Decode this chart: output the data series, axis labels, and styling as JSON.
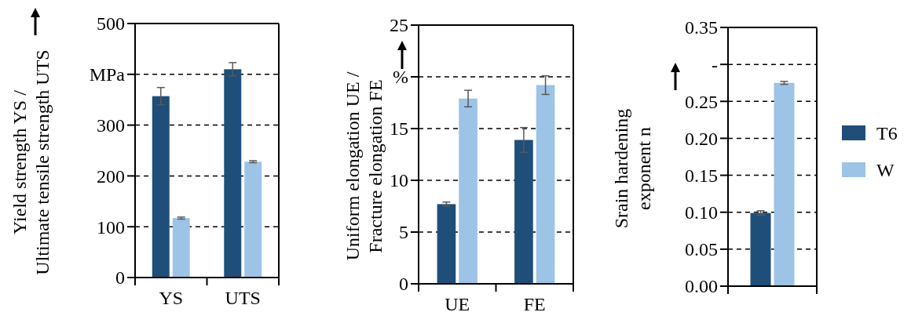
{
  "chart_data": [
    {
      "type": "bar",
      "ylabel": "Yield strength YS /\nUltimate tensile strength UTS",
      "categories": [
        "YS",
        "UTS"
      ],
      "series": [
        {
          "color": "#1f4e79",
          "values": [
            357,
            410
          ],
          "errors": [
            17,
            13
          ]
        },
        {
          "color": "#9dc3e6",
          "values": [
            117,
            228
          ],
          "errors": [
            2,
            2
          ]
        }
      ],
      "ylim": [
        0,
        500
      ],
      "yticks": [
        0,
        100,
        200,
        300,
        {
          "value": 400,
          "label": "MPa"
        },
        500
      ],
      "grid": "y",
      "legend": false
    },
    {
      "type": "bar",
      "ylabel": "Uniform elongation UE /\nFracture elongation FE",
      "categories": [
        "UE",
        "FE"
      ],
      "series": [
        {
          "color": "#1f4e79",
          "values": [
            7.7,
            13.9
          ],
          "errors": [
            0.2,
            1.2
          ]
        },
        {
          "color": "#9dc3e6",
          "values": [
            17.9,
            19.2
          ],
          "errors": [
            0.8,
            0.9
          ]
        }
      ],
      "ylim": [
        0,
        25
      ],
      "yticks": [
        0,
        5,
        10,
        15,
        {
          "value": 20,
          "label": "%"
        },
        25
      ],
      "grid": "y",
      "legend": false
    },
    {
      "type": "bar",
      "ylabel": "Srain hardening\nexponent n",
      "categories": [
        null
      ],
      "series": [
        {
          "name": "T6",
          "color": "#1f4e79",
          "values": [
            0.099
          ],
          "errors": [
            0.003
          ]
        },
        {
          "name": "W",
          "color": "#9dc3e6",
          "values": [
            0.275
          ],
          "errors": [
            0.002
          ]
        }
      ],
      "ylim": [
        0,
        0.35
      ],
      "yticks": [
        {
          "value": 0,
          "label": "0.00"
        },
        {
          "value": 0.05,
          "label": "0.05"
        },
        {
          "value": 0.1,
          "label": "0.10"
        },
        {
          "value": 0.15,
          "label": "0.15"
        },
        {
          "value": 0.2,
          "label": "0.20"
        },
        {
          "value": 0.25,
          "label": "0.25"
        },
        {
          "value": 0.3,
          "label": "-"
        },
        {
          "value": 0.35,
          "label": "0.35"
        }
      ],
      "grid": "y",
      "legend": "right"
    }
  ]
}
